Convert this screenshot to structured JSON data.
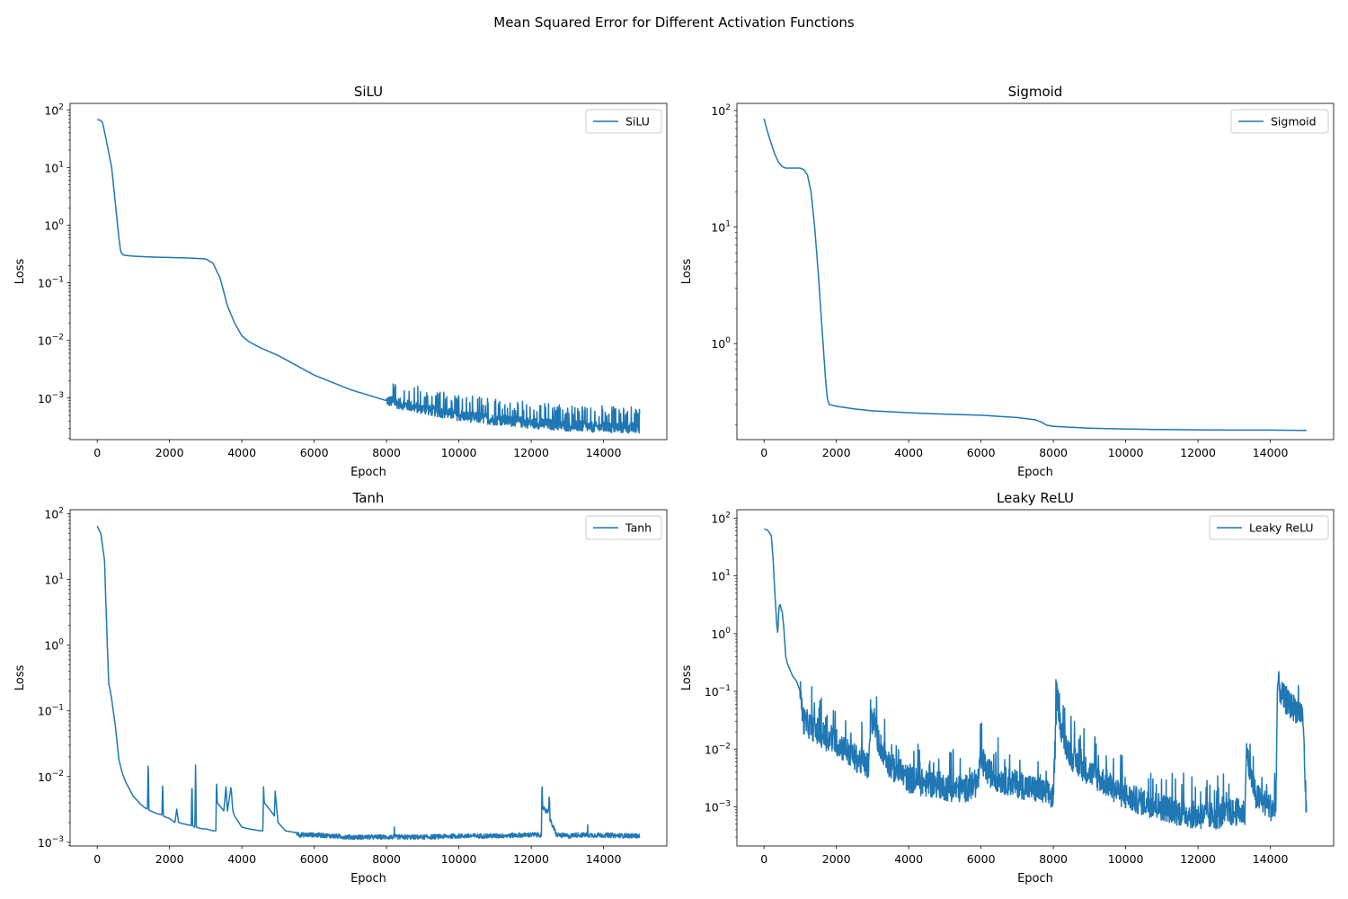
{
  "figure": {
    "title": "Mean Squared Error for Different Activation Functions"
  },
  "colors": {
    "series": "#1f77b4",
    "axes": "#000000",
    "background": "#ffffff"
  },
  "chart_data": [
    {
      "type": "line",
      "title": "SiLU",
      "xlabel": "Epoch",
      "ylabel": "Loss",
      "yscale": "log",
      "xlim": [
        -750,
        15750
      ],
      "ylim": [
        0.00019,
        130
      ],
      "x_ticks": [
        0,
        2000,
        4000,
        6000,
        8000,
        10000,
        12000,
        14000
      ],
      "y_ticks": [
        0.001,
        0.01,
        0.1,
        1,
        10,
        100
      ],
      "y_tick_labels": [
        [
          "10",
          "−3"
        ],
        [
          "10",
          "−2"
        ],
        [
          "10",
          "−1"
        ],
        [
          "10",
          "0"
        ],
        [
          "10",
          "1"
        ],
        [
          "10",
          "2"
        ]
      ],
      "grid": false,
      "legend": "upper right",
      "noise": {
        "amp": 0.22,
        "spikes": 0.12,
        "spike_mult": 1.9,
        "start": 8000
      },
      "series": [
        {
          "name": "SiLU",
          "x": [
            0,
            100,
            150,
            250,
            400,
            550,
            600,
            650,
            700,
            750,
            1000,
            1500,
            2000,
            2500,
            3000,
            3200,
            3400,
            3600,
            3800,
            4000,
            4200,
            4500,
            5000,
            6000,
            7000,
            8000,
            9000,
            10000,
            11000,
            12000,
            13000,
            14000,
            15000
          ],
          "y": [
            68,
            66,
            60,
            30,
            10,
            1.2,
            0.6,
            0.35,
            0.31,
            0.3,
            0.29,
            0.28,
            0.275,
            0.27,
            0.26,
            0.22,
            0.12,
            0.04,
            0.02,
            0.012,
            0.0095,
            0.0075,
            0.0055,
            0.0025,
            0.0014,
            0.0009,
            0.00065,
            0.0005,
            0.00042,
            0.00037,
            0.00033,
            0.00031,
            0.0003
          ]
        }
      ]
    },
    {
      "type": "line",
      "title": "Sigmoid",
      "xlabel": "Epoch",
      "ylabel": "Loss",
      "yscale": "log",
      "xlim": [
        -750,
        15750
      ],
      "ylim": [
        0.15,
        115
      ],
      "x_ticks": [
        0,
        2000,
        4000,
        6000,
        8000,
        10000,
        12000,
        14000
      ],
      "y_ticks": [
        1,
        10,
        100
      ],
      "y_tick_labels": [
        [
          "10",
          "0"
        ],
        [
          "10",
          "1"
        ],
        [
          "10",
          "2"
        ]
      ],
      "grid": false,
      "legend": "upper right",
      "noise": {
        "amp": 0,
        "spikes": 0,
        "spike_mult": 1,
        "start": 0
      },
      "series": [
        {
          "name": "Sigmoid",
          "x": [
            0,
            100,
            200,
            300,
            400,
            500,
            600,
            800,
            1000,
            1100,
            1200,
            1300,
            1400,
            1500,
            1600,
            1700,
            1750,
            1800,
            1900,
            2000,
            2500,
            3000,
            4000,
            5000,
            6000,
            7000,
            7500,
            7700,
            7800,
            8000,
            9000,
            10000,
            11000,
            12000,
            13000,
            14000,
            15000
          ],
          "y": [
            85,
            65,
            52,
            42,
            36,
            33,
            32,
            32,
            32,
            31,
            28,
            20,
            10,
            4,
            1.4,
            0.5,
            0.34,
            0.3,
            0.295,
            0.29,
            0.275,
            0.265,
            0.255,
            0.248,
            0.243,
            0.232,
            0.222,
            0.21,
            0.2,
            0.195,
            0.188,
            0.185,
            0.183,
            0.182,
            0.181,
            0.181,
            0.18
          ]
        }
      ]
    },
    {
      "type": "line",
      "title": "Tanh",
      "xlabel": "Epoch",
      "ylabel": "Loss",
      "yscale": "log",
      "xlim": [
        -750,
        15750
      ],
      "ylim": [
        0.00088,
        115
      ],
      "x_ticks": [
        0,
        2000,
        4000,
        6000,
        8000,
        10000,
        12000,
        14000
      ],
      "y_ticks": [
        0.001,
        0.01,
        0.1,
        1,
        10,
        100
      ],
      "y_tick_labels": [
        [
          "10",
          "−3"
        ],
        [
          "10",
          "−2"
        ],
        [
          "10",
          "−1"
        ],
        [
          "10",
          "0"
        ],
        [
          "10",
          "1"
        ],
        [
          "10",
          "2"
        ]
      ],
      "grid": false,
      "legend": "upper right",
      "noise": {
        "amp": 0.08,
        "spikes": 0.003,
        "spike_mult": 1.4,
        "start": 5500
      },
      "series": [
        {
          "name": "Tanh",
          "x": [
            0,
            100,
            200,
            280,
            320,
            350,
            400,
            500,
            600,
            700,
            800,
            1000,
            1200,
            1300,
            1390,
            1410,
            1430,
            1600,
            1790,
            1810,
            1830,
            2000,
            2150,
            2200,
            2250,
            2400,
            2600,
            2620,
            2640,
            2700,
            2720,
            2740,
            2900,
            3000,
            3200,
            3280,
            3300,
            3320,
            3500,
            3560,
            3600,
            3700,
            3750,
            3800,
            4000,
            4200,
            4500,
            4580,
            4600,
            4620,
            4800,
            4900,
            4920,
            5000,
            5200,
            5500,
            5600,
            6000,
            7000,
            8000,
            9000,
            10000,
            11000,
            12000,
            12280,
            12300,
            12320,
            12360,
            12400,
            12480,
            12500,
            12520,
            12700,
            13000,
            13100,
            13200,
            14000,
            15000
          ],
          "y": [
            65,
            50,
            20,
            1,
            0.25,
            0.22,
            0.15,
            0.06,
            0.018,
            0.011,
            0.008,
            0.005,
            0.0038,
            0.0034,
            0.0032,
            0.017,
            0.0031,
            0.0028,
            0.0026,
            0.008,
            0.0025,
            0.0023,
            0.002,
            0.0032,
            0.002,
            0.0019,
            0.0018,
            0.009,
            0.0018,
            0.0017,
            0.015,
            0.0017,
            0.0016,
            0.0016,
            0.0015,
            0.0015,
            0.009,
            0.004,
            0.003,
            0.007,
            0.003,
            0.007,
            0.003,
            0.0025,
            0.0017,
            0.0016,
            0.0015,
            0.0015,
            0.007,
            0.004,
            0.003,
            0.0025,
            0.006,
            0.002,
            0.0015,
            0.0014,
            0.0013,
            0.0013,
            0.0012,
            0.0012,
            0.0012,
            0.00125,
            0.00125,
            0.0013,
            0.0013,
            0.008,
            0.003,
            0.0035,
            0.003,
            0.003,
            0.006,
            0.0022,
            0.0013,
            0.00125,
            0.00125,
            0.0013,
            0.00128,
            0.00125
          ]
        }
      ]
    },
    {
      "type": "line",
      "title": "Leaky ReLU",
      "xlabel": "Epoch",
      "ylabel": "Loss",
      "yscale": "log",
      "xlim": [
        -750,
        15750
      ],
      "ylim": [
        0.00021,
        140
      ],
      "x_ticks": [
        0,
        2000,
        4000,
        6000,
        8000,
        10000,
        12000,
        14000
      ],
      "y_ticks": [
        0.001,
        0.01,
        0.1,
        1,
        10,
        100
      ],
      "y_tick_labels": [
        [
          "10",
          "−3"
        ],
        [
          "10",
          "−2"
        ],
        [
          "10",
          "−1"
        ],
        [
          "10",
          "0"
        ],
        [
          "10",
          "1"
        ],
        [
          "10",
          "2"
        ]
      ],
      "grid": false,
      "legend": "upper right",
      "noise": {
        "amp": 0.55,
        "spikes": 0.06,
        "spike_mult": 3,
        "start": 1000
      },
      "series": [
        {
          "name": "Leaky ReLU",
          "x": [
            0,
            100,
            200,
            250,
            300,
            350,
            380,
            400,
            420,
            450,
            480,
            500,
            550,
            600,
            650,
            700,
            800,
            900,
            1000,
            1050,
            1100,
            1300,
            1500,
            1800,
            2100,
            2400,
            2700,
            2900,
            2950,
            3000,
            3200,
            3500,
            4000,
            4500,
            4800,
            5000,
            5500,
            5900,
            6000,
            6200,
            6500,
            7000,
            7500,
            8000,
            8100,
            8130,
            8200,
            8400,
            8600,
            9000,
            9500,
            10000,
            10500,
            11000,
            11500,
            12000,
            12500,
            13000,
            13300,
            13350,
            13400,
            13600,
            14000,
            14150,
            14200,
            14300,
            14500,
            14700,
            14900,
            15000
          ],
          "y": [
            65,
            62,
            50,
            20,
            5,
            1.5,
            1,
            2,
            3,
            3.2,
            2.5,
            2.5,
            1.2,
            0.4,
            0.3,
            0.25,
            0.18,
            0.15,
            0.1,
            0.05,
            0.03,
            0.025,
            0.02,
            0.015,
            0.012,
            0.008,
            0.006,
            0.005,
            0.035,
            0.03,
            0.012,
            0.005,
            0.003,
            0.0025,
            0.0025,
            0.0022,
            0.002,
            0.0025,
            0.006,
            0.004,
            0.003,
            0.0025,
            0.002,
            0.0015,
            0.1,
            0.07,
            0.025,
            0.01,
            0.006,
            0.004,
            0.0025,
            0.0015,
            0.0012,
            0.001,
            0.0008,
            0.0007,
            0.0007,
            0.0008,
            0.0008,
            0.015,
            0.005,
            0.0015,
            0.001,
            0.0009,
            0.15,
            0.09,
            0.06,
            0.05,
            0.04,
            0.0006
          ]
        }
      ]
    }
  ]
}
